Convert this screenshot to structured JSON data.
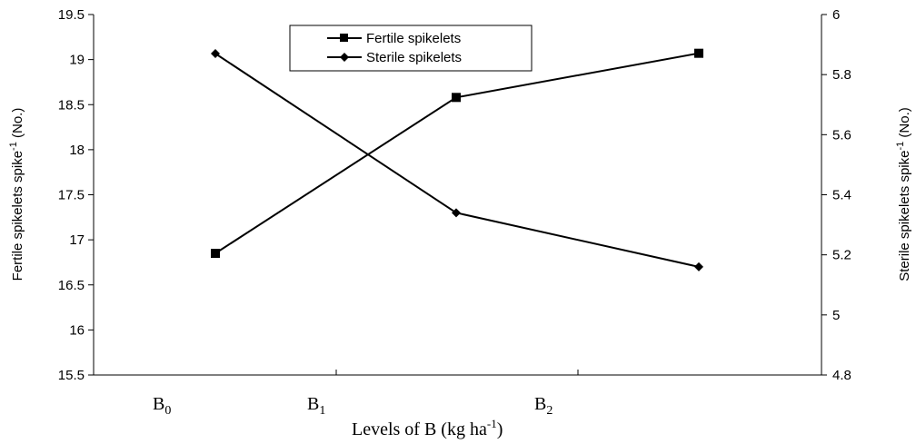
{
  "chart_data": {
    "type": "line",
    "categories": [
      "B0",
      "B1",
      "B2"
    ],
    "category_labels": [
      {
        "base": "B",
        "sub": "0"
      },
      {
        "base": "B",
        "sub": "1"
      },
      {
        "base": "B",
        "sub": "2"
      }
    ],
    "xlabel": {
      "text": "Levels of B (kg ha",
      "sup": "-1",
      "end": ")"
    },
    "y_left": {
      "label": {
        "text": "Fertile spikelets spike",
        "sup": "-1",
        "end": " (No.)"
      },
      "lim": [
        15.5,
        19.5
      ],
      "ticks": [
        "15.5",
        "16",
        "16.5",
        "17",
        "17.5",
        "18",
        "18.5",
        "19",
        "19.5"
      ]
    },
    "y_right": {
      "label": {
        "text": "Sterile spikelets spike",
        "sup": "-1",
        "end": " (No.)"
      },
      "lim": [
        4.8,
        6.0
      ],
      "ticks": [
        "4.8",
        "5",
        "5.2",
        "5.4",
        "5.6",
        "5.8",
        "6"
      ]
    },
    "series": [
      {
        "name": "Fertile spikelets",
        "axis": "left",
        "marker": "square",
        "values": [
          16.85,
          18.58,
          19.07
        ]
      },
      {
        "name": "Sterile spikelets",
        "axis": "right",
        "marker": "diamond",
        "values": [
          5.87,
          5.34,
          5.16
        ]
      }
    ],
    "legend_position": "top-center",
    "grid": false,
    "colors": {
      "line": "#000000",
      "background": "#ffffff"
    }
  }
}
